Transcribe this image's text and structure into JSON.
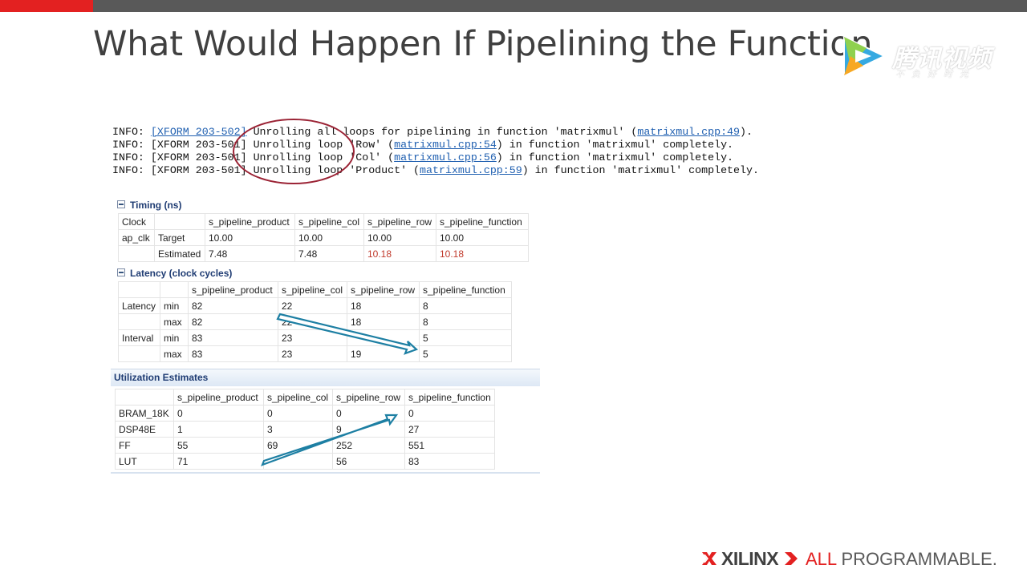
{
  "title": "What Would Happen If Pipelining the Function",
  "watermark": {
    "name": "腾讯视频",
    "slogan": "不负好时光"
  },
  "console": [
    {
      "prefix": "INFO: ",
      "link1": "[XFORM 203-502]",
      "text1": " Unrolling all loops for pipelining in function 'matrixmul' (",
      "link2": "matrixmul.cpp:49",
      "text2": ")."
    },
    {
      "prefix": "INFO: ",
      "plain1": "[XFORM 203-501]",
      "text1": " Unrolling loop 'Row' (",
      "link2": "matrixmul.cpp:54",
      "text2": ") in function 'matrixmul' completely."
    },
    {
      "prefix": "INFO: ",
      "plain1": "[XFORM 203-501]",
      "text1": " Unrolling loop 'Col' (",
      "link2": "matrixmul.cpp:56",
      "text2": ") in function 'matrixmul' completely."
    },
    {
      "prefix": "INFO: ",
      "plain1": "[XFORM 203-501]",
      "text1": " Unrolling loop 'Product' (",
      "link2": "matrixmul.cpp:59",
      "text2": ") in function 'matrixmul' completely."
    }
  ],
  "timing": {
    "heading": "Timing (ns)",
    "header": [
      "Clock",
      "",
      "s_pipeline_product",
      "s_pipeline_col",
      "s_pipeline_row",
      "s_pipeline_function"
    ],
    "rows": [
      [
        "ap_clk",
        "Target",
        "10.00",
        "10.00",
        "10.00",
        "10.00"
      ],
      [
        "",
        "Estimated",
        "7.48",
        "7.48",
        "10.18",
        "10.18"
      ]
    ],
    "highlight_color": "#c0392b"
  },
  "latency": {
    "heading": "Latency (clock cycles)",
    "header": [
      "",
      "",
      "s_pipeline_product",
      "s_pipeline_col",
      "s_pipeline_row",
      "s_pipeline_function"
    ],
    "rows": [
      [
        "Latency",
        "min",
        "82",
        "22",
        "18",
        "8"
      ],
      [
        "",
        "max",
        "82",
        "22",
        "18",
        "8"
      ],
      [
        "Interval",
        "min",
        "83",
        "23",
        "",
        "5"
      ],
      [
        "",
        "max",
        "83",
        "23",
        "19",
        "5"
      ]
    ]
  },
  "utilization": {
    "heading": "Utilization Estimates",
    "header": [
      "",
      "s_pipeline_product",
      "s_pipeline_col",
      "s_pipeline_row",
      "s_pipeline_function"
    ],
    "rows": [
      [
        "BRAM_18K",
        "0",
        "0",
        "0",
        "0"
      ],
      [
        "DSP48E",
        "1",
        "3",
        "9",
        "27"
      ],
      [
        "FF",
        "55",
        "69",
        "252",
        "551"
      ],
      [
        "LUT",
        "71",
        "",
        "56",
        "83"
      ]
    ]
  },
  "footer": {
    "brand": "XILINX",
    "tag_all": "ALL",
    "tag_prog": "PROGRAMMABLE.",
    "accent": "#e32121"
  },
  "colors": {
    "arrow": "#1d7fa3",
    "ellipse": "#9b2335",
    "accent": "#e32121"
  }
}
